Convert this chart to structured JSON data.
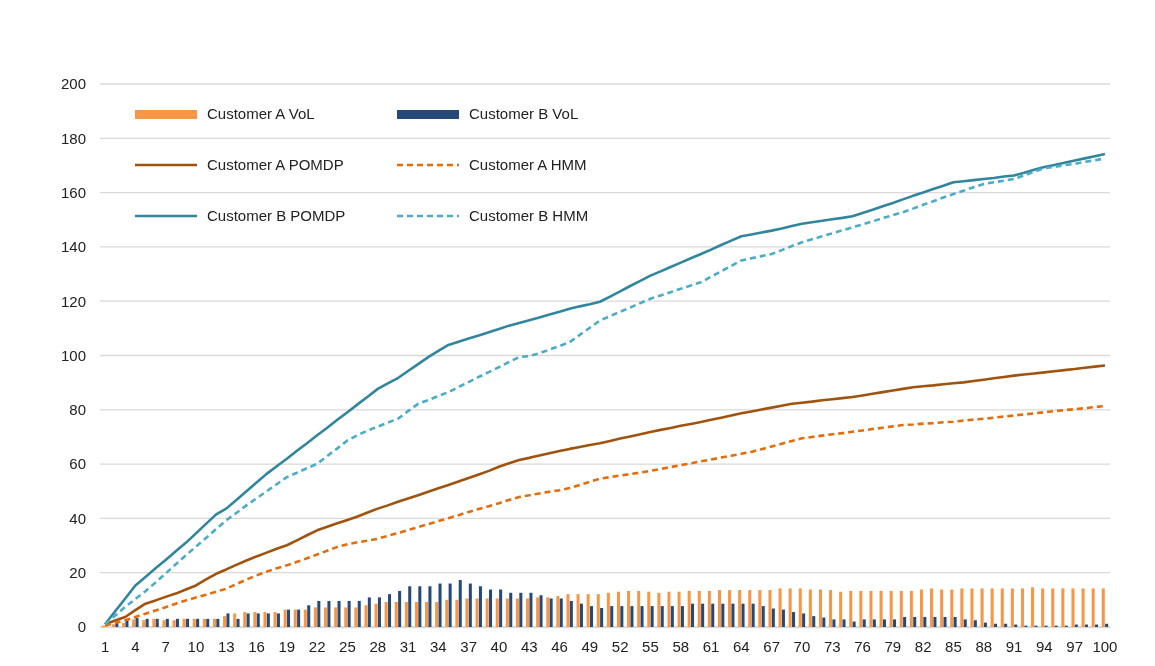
{
  "chart_data": {
    "type": "bar",
    "categories": [
      "1",
      null,
      null,
      "4",
      null,
      null,
      "7",
      null,
      null,
      "10",
      null,
      null,
      "13",
      null,
      null,
      "16",
      null,
      null,
      "19",
      null,
      null,
      "22",
      null,
      null,
      "25",
      null,
      null,
      "28",
      null,
      null,
      "31",
      null,
      null,
      "34",
      null,
      null,
      "37",
      null,
      null,
      "40",
      null,
      null,
      "43",
      null,
      null,
      "46",
      null,
      null,
      "49",
      null,
      null,
      "52",
      null,
      null,
      "55",
      null,
      null,
      "58",
      null,
      null,
      "61",
      null,
      null,
      "64",
      null,
      null,
      "67",
      null,
      null,
      "70",
      null,
      null,
      "73",
      null,
      null,
      "76",
      null,
      null,
      "79",
      null,
      null,
      "82",
      null,
      null,
      "85",
      null,
      null,
      "88",
      null,
      null,
      "91",
      null,
      null,
      "94",
      null,
      null,
      "97",
      null,
      null,
      "100"
    ],
    "ylim": [
      0,
      200
    ],
    "yticks": [
      0,
      20,
      40,
      60,
      80,
      100,
      120,
      140,
      160,
      180,
      200
    ],
    "grid": "y",
    "legend": "top left",
    "series": [
      {
        "name": "Customer A VoL",
        "color": "#f79646",
        "values": [
          0.5,
          1,
          1.5,
          2.8,
          2.5,
          3,
          2.5,
          2.5,
          3,
          3,
          3,
          3,
          4,
          5,
          5.5,
          5.5,
          5.5,
          5.5,
          6.4,
          6.4,
          6.4,
          7.2,
          7.2,
          7.2,
          7.2,
          7.2,
          8,
          8.6,
          9.2,
          9.2,
          9.2,
          9.2,
          9.2,
          9.2,
          10,
          10,
          10.5,
          10.5,
          10.5,
          10.5,
          10.5,
          10.5,
          10.5,
          10.9,
          10.9,
          11.4,
          12.1,
          12.1,
          12.1,
          12.1,
          12.6,
          13,
          13.3,
          13.3,
          13,
          12.6,
          13,
          13,
          13.3,
          13.3,
          13.3,
          13.6,
          13.6,
          13.6,
          13.6,
          13.6,
          13.6,
          14.2,
          14.2,
          14.2,
          13.8,
          13.8,
          13.6,
          13,
          13.3,
          13.3,
          13.3,
          13.3,
          13.3,
          13.3,
          13.3,
          13.8,
          14.2,
          13.8,
          13.8,
          14.2,
          14.2,
          14.2,
          14.2,
          14.2,
          14.2,
          14.2,
          14.6,
          14.2,
          14.2,
          14.2,
          14.2,
          14.2,
          14.2,
          14.2
        ]
      },
      {
        "name": "Customer B VoL",
        "color": "#254a7a",
        "values": [
          null,
          1.9,
          2.5,
          3.3,
          3,
          3,
          3,
          3,
          3,
          3,
          3,
          3,
          5,
          3,
          5,
          5,
          5,
          5,
          6.4,
          6.4,
          8,
          9.6,
          9.6,
          9.6,
          9.6,
          9.6,
          10.9,
          10.9,
          12.1,
          13.3,
          15,
          15,
          15,
          16,
          16,
          17.3,
          16,
          15,
          13.8,
          13.8,
          12.6,
          12.6,
          12.6,
          11.7,
          10.5,
          10.5,
          9.6,
          8.6,
          7.7,
          7,
          7.7,
          7.7,
          7.7,
          7.7,
          7.7,
          7.7,
          7.7,
          7.7,
          8.6,
          8.6,
          8.6,
          8.6,
          8.6,
          8.6,
          8.6,
          7.7,
          6.8,
          6.4,
          5.5,
          5,
          4,
          3.5,
          2.8,
          2.8,
          2,
          2.8,
          2.8,
          2.8,
          2.8,
          3.7,
          3.7,
          3.7,
          3.7,
          3.7,
          3.7,
          2.8,
          2.5,
          1.6,
          1.2,
          1.2,
          0.9,
          0.5,
          0.5,
          0.5,
          0.5,
          0.5,
          0.9,
          0.9,
          0.9,
          1.2
        ]
      },
      {
        "name": "Customer A POMDP",
        "type": "line",
        "line_style": "solid",
        "color": "#a0520f",
        "values": [
          1,
          2.4,
          3.7,
          6.2,
          8.6,
          9.8,
          11.1,
          12.3,
          13.8,
          15.3,
          17.5,
          19.6,
          21.2,
          22.9,
          24.5,
          26,
          27.4,
          28.8,
          30.1,
          31.9,
          33.8,
          35.6,
          36.9,
          38.2,
          39.4,
          40.7,
          42.2,
          43.6,
          44.8,
          46.1,
          47.3,
          48.5,
          49.8,
          51.1,
          52.3,
          53.6,
          54.9,
          56.2,
          57.5,
          59,
          60.3,
          61.5,
          62.3,
          63.2,
          64,
          64.8,
          65.6,
          66.3,
          67,
          67.7,
          68.5,
          69.4,
          70.2,
          71,
          71.8,
          72.6,
          73.3,
          74.1,
          74.8,
          75.5,
          76.3,
          77.1,
          77.9,
          78.7,
          79.4,
          80.1,
          80.8,
          81.5,
          82.2,
          82.6,
          83,
          83.5,
          83.9,
          84.3,
          84.7,
          85.3,
          85.9,
          86.5,
          87.1,
          87.7,
          88.3,
          88.7,
          89,
          89.4,
          89.8,
          90.1,
          90.6,
          91.1,
          91.6,
          92.1,
          92.6,
          93,
          93.4,
          93.8,
          94.2,
          94.6,
          95,
          95.5,
          95.9,
          96.3
        ]
      },
      {
        "name": "Customer A HMM",
        "type": "line",
        "line_style": "dashed",
        "color": "#e46c0a",
        "values": [
          0.5,
          1.5,
          2.5,
          3.7,
          4.9,
          6.1,
          7.3,
          8.6,
          9.8,
          10.9,
          11.9,
          13,
          14.1,
          15.8,
          17.5,
          19,
          20.4,
          21.6,
          22.7,
          24,
          25.3,
          26.7,
          28.1,
          29.5,
          30.5,
          31.2,
          31.8,
          32.5,
          33.6,
          34.6,
          35.7,
          36.8,
          37.9,
          39,
          40.1,
          41.2,
          42.4,
          43.5,
          44.5,
          45.6,
          46.8,
          47.9,
          48.5,
          49.2,
          49.8,
          50.4,
          51.2,
          52.3,
          53.5,
          54.6,
          55.2,
          55.8,
          56.3,
          56.9,
          57.5,
          58.2,
          58.9,
          59.6,
          60.3,
          61,
          61.7,
          62.4,
          63.1,
          63.8,
          64.5,
          65.5,
          66.5,
          67.5,
          68.5,
          69.5,
          70,
          70.5,
          71,
          71.4,
          71.9,
          72.4,
          72.9,
          73.4,
          73.9,
          74.4,
          74.6,
          74.9,
          75.1,
          75.4,
          75.6,
          76,
          76.4,
          76.7,
          77.1,
          77.5,
          77.9,
          78.3,
          78.7,
          79.1,
          79.5,
          79.9,
          80.2,
          80.6,
          81,
          81.4
        ]
      },
      {
        "name": "Customer B POMDP",
        "type": "line",
        "line_style": "solid",
        "color": "#31859c",
        "values": [
          1,
          5.8,
          10.5,
          15.3,
          18.4,
          21.6,
          24.7,
          27.9,
          31,
          34.5,
          38,
          41.5,
          43.6,
          46.8,
          50,
          53.2,
          56.4,
          59.2,
          62,
          64.9,
          67.7,
          70.6,
          73.4,
          76.3,
          79.1,
          82,
          84.8,
          87.7,
          89.7,
          91.7,
          94.3,
          96.8,
          99.4,
          101.7,
          103.9,
          105.1,
          106.3,
          107.4,
          108.6,
          109.8,
          111,
          112,
          113,
          114,
          115.1,
          116.1,
          117.2,
          118.1,
          118.9,
          119.8,
          121.7,
          123.6,
          125.6,
          127.5,
          129.4,
          131,
          132.6,
          134.2,
          135.8,
          137.4,
          139,
          140.7,
          142.3,
          143.9,
          144.6,
          145.3,
          146,
          146.8,
          147.7,
          148.5,
          149.1,
          149.6,
          150.2,
          150.7,
          151.3,
          152.5,
          153.7,
          155,
          156.2,
          157.5,
          158.8,
          160,
          161.3,
          162.5,
          163.8,
          164.2,
          164.6,
          165,
          165.4,
          165.9,
          166.3,
          167.3,
          168.4,
          169.4,
          170.2,
          171,
          171.8,
          172.6,
          173.4,
          174.2
        ]
      },
      {
        "name": "Customer B HMM",
        "type": "line",
        "line_style": "dashed",
        "color": "#4bacc6",
        "values": [
          1,
          4.2,
          7.4,
          10.3,
          13.2,
          16.4,
          19.7,
          23.1,
          26.4,
          29.6,
          32.8,
          36.1,
          39.3,
          42,
          44.8,
          47.4,
          50,
          52.6,
          55.2,
          56.8,
          58.5,
          60.1,
          63,
          65.8,
          68.7,
          70.6,
          72.4,
          73.8,
          75.3,
          76.7,
          79.5,
          82.2,
          83.6,
          85.1,
          86.5,
          88.4,
          90.2,
          92.1,
          93.9,
          95.7,
          97.6,
          99.4,
          99.8,
          100.8,
          102.2,
          103.5,
          104.9,
          107.6,
          110.2,
          112.9,
          114.5,
          116.1,
          117.7,
          119.3,
          120.9,
          122.1,
          123.3,
          124.6,
          125.8,
          127,
          129,
          131,
          133,
          135,
          135.8,
          136.6,
          137.4,
          138.8,
          140.3,
          141.7,
          142.8,
          143.9,
          145,
          146.1,
          147.2,
          148.3,
          149.4,
          150.6,
          151.7,
          152.8,
          154.1,
          155.5,
          156.8,
          158.2,
          159.5,
          160.7,
          162,
          163.2,
          163.8,
          164.4,
          165,
          166.3,
          167.7,
          169,
          169.5,
          170.1,
          170.6,
          171.3,
          171.9,
          172.6
        ]
      }
    ]
  }
}
